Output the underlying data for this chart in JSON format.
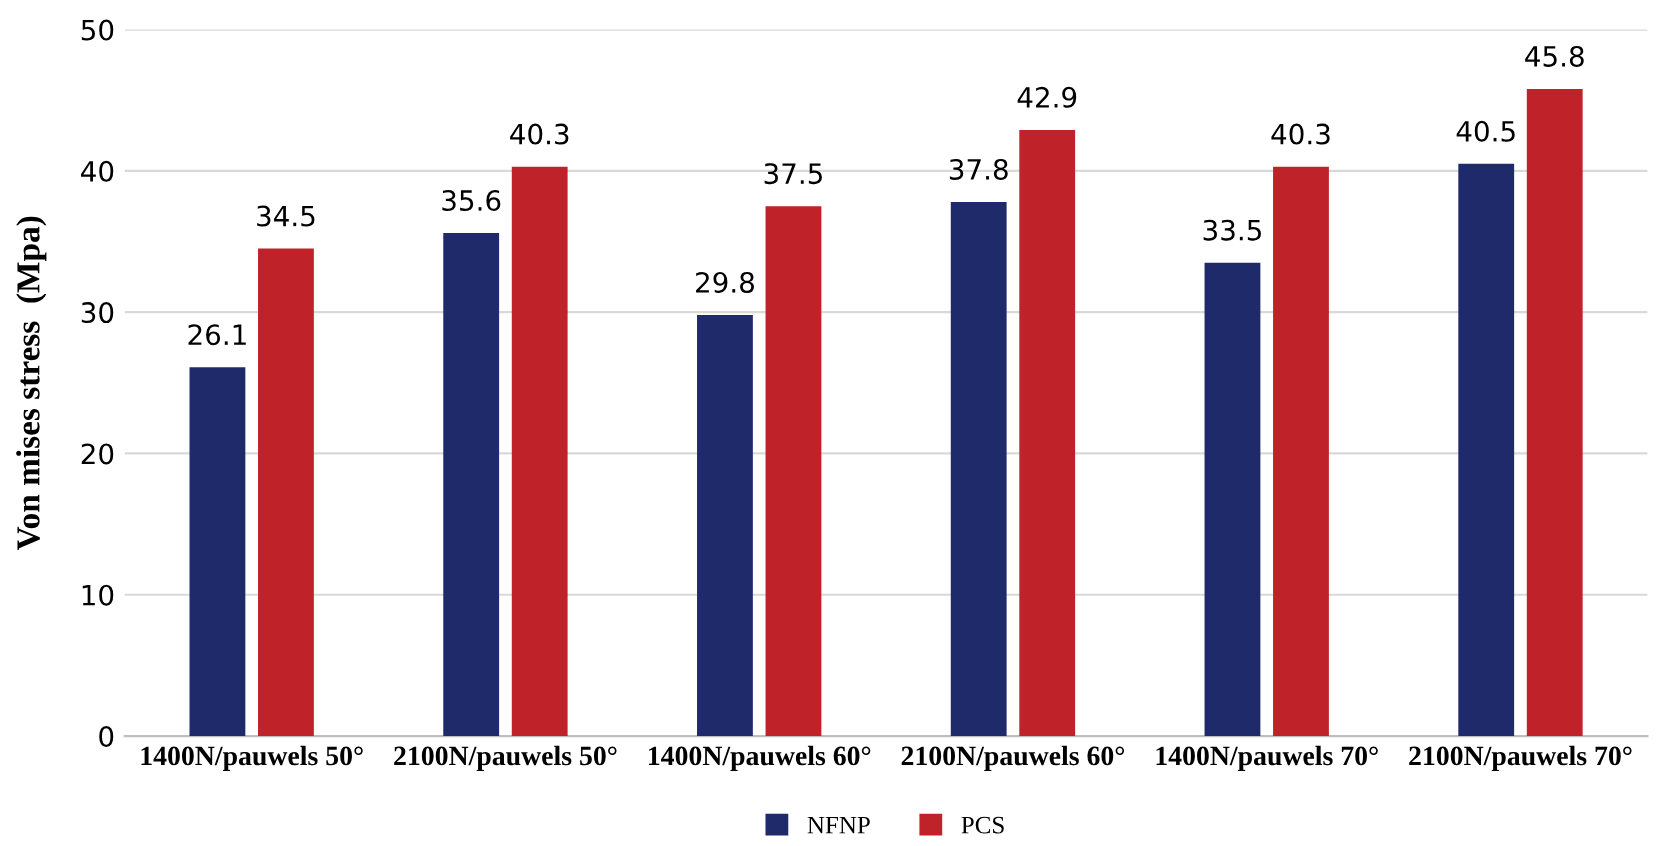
{
  "chart_data": {
    "type": "bar",
    "ylabel": "Von mises stress  (Mpa)",
    "categories": [
      "1400N/pauwels 50°",
      "2100N/pauwels 50°",
      "1400N/pauwels 60°",
      "2100N/pauwels 60°",
      "1400N/pauwels 70°",
      "2100N/pauwels 70°"
    ],
    "series": [
      {
        "name": "NFNP",
        "color": "#1f2a6b",
        "values": [
          26.1,
          35.6,
          29.8,
          37.8,
          33.5,
          40.5
        ]
      },
      {
        "name": "PCS",
        "color": "#c0222a",
        "values": [
          34.5,
          40.3,
          37.5,
          42.9,
          40.3,
          45.8
        ]
      }
    ],
    "ylim": [
      0,
      50
    ],
    "yticks": [
      0,
      10,
      20,
      30,
      40,
      50
    ],
    "grid": "y",
    "legend": "bottom",
    "data_labels": true
  }
}
